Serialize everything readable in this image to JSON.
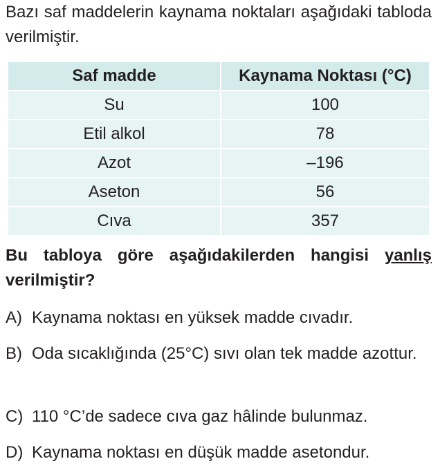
{
  "intro": "Bazı saf maddelerin kaynama noktaları aşağıdaki tabloda verilmiştir.",
  "table": {
    "headers": [
      "Saf madde",
      "Kaynama Noktası (°C)"
    ],
    "rows": [
      [
        "Su",
        "100"
      ],
      [
        "Etil alkol",
        "78"
      ],
      [
        "Azot",
        "–196"
      ],
      [
        "Aseton",
        "56"
      ],
      [
        "Cıva",
        "357"
      ]
    ]
  },
  "question": {
    "before": "Bu tabloya göre aşağıdakilerden hangisi ",
    "underlined": "yanlış",
    "after": " verilmiştir?"
  },
  "options": [
    {
      "letter": "A)",
      "text": "Kaynama noktası en yüksek madde cıvadır."
    },
    {
      "letter": "B)",
      "text": "Oda sıcaklığında (25°C) sıvı olan tek madde azottur."
    },
    {
      "letter": "C)",
      "text": "110 °C’de sadece cıva gaz hâlinde bulunmaz."
    },
    {
      "letter": "D)",
      "text": "Kaynama noktası en düşük madde asetondur."
    }
  ]
}
